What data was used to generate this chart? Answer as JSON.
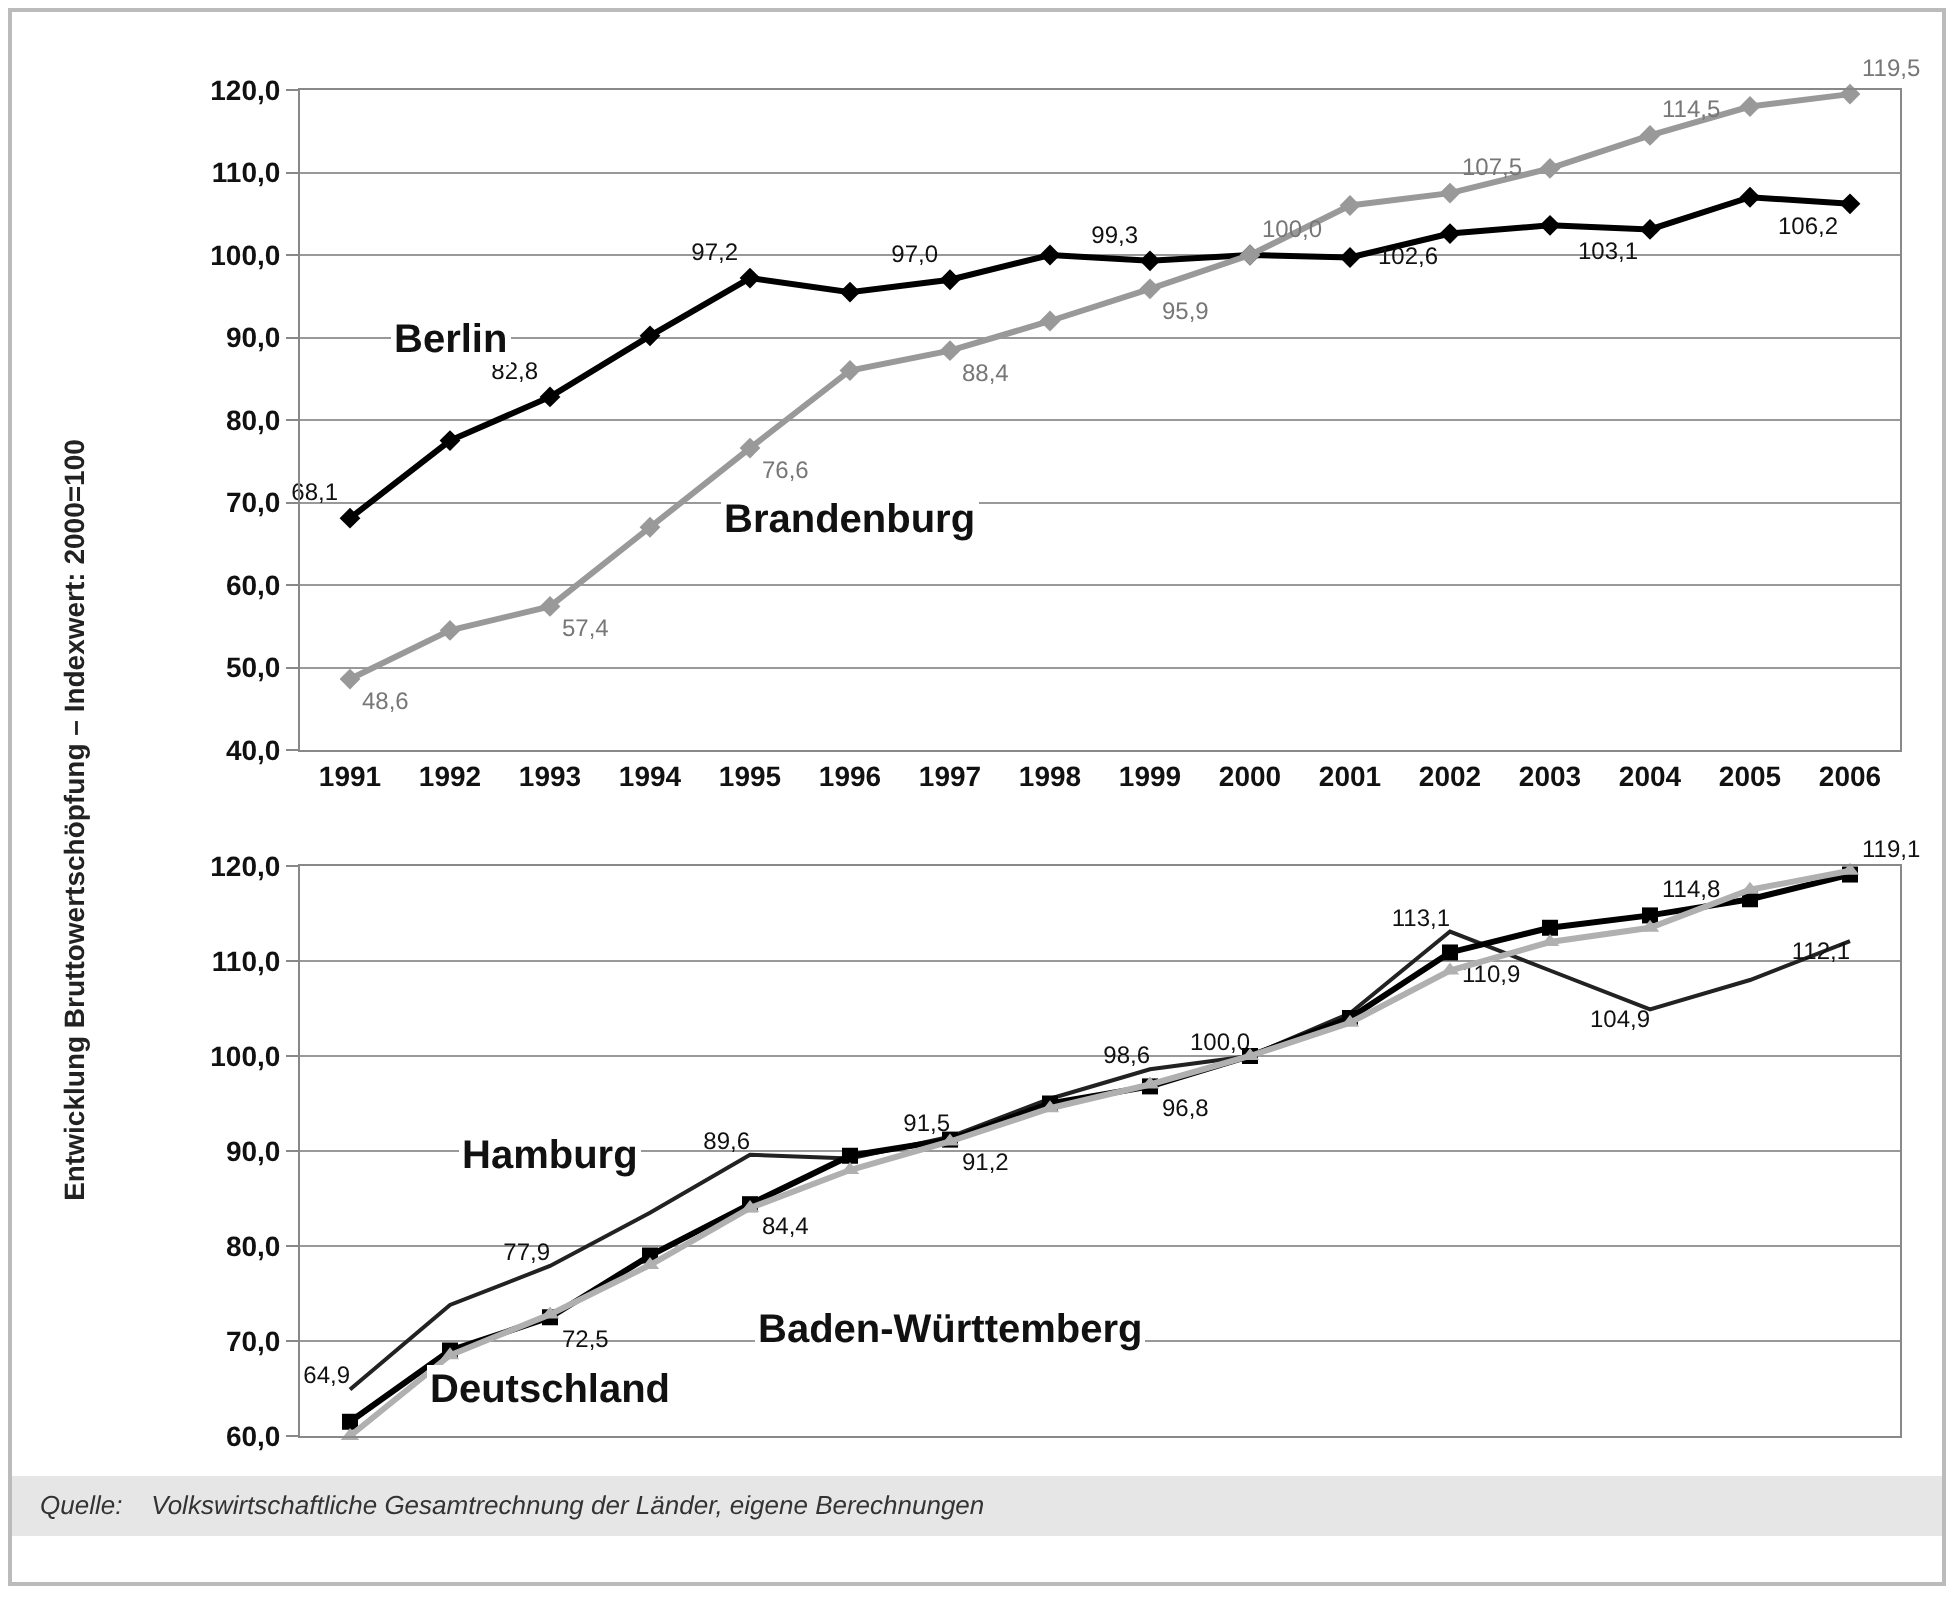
{
  "chart_data": [
    {
      "type": "line",
      "ylabel": "Entwicklung Bruttowertschöpfung – Indexwert: 2000=100",
      "categories": [
        "1991",
        "1992",
        "1993",
        "1994",
        "1995",
        "1996",
        "1997",
        "1998",
        "1999",
        "2000",
        "2001",
        "2002",
        "2003",
        "2004",
        "2005",
        "2006"
      ],
      "ylim": [
        40,
        120
      ],
      "yticks": [
        {
          "value": 40,
          "label": "40,0"
        },
        {
          "value": 50,
          "label": "50,0"
        },
        {
          "value": 60,
          "label": "60,0"
        },
        {
          "value": 70,
          "label": "70,0"
        },
        {
          "value": 80,
          "label": "80,0"
        },
        {
          "value": 90,
          "label": "90,0"
        },
        {
          "value": 100,
          "label": "100,0"
        },
        {
          "value": 110,
          "label": "110,0"
        },
        {
          "value": 120,
          "label": "120,0"
        }
      ],
      "grid": "y",
      "legend": false,
      "series": [
        {
          "name": "Berlin",
          "color": "#000000",
          "marker": "diamond",
          "values": [
            68.1,
            77.5,
            82.8,
            90.2,
            97.2,
            95.5,
            97.0,
            100.0,
            99.3,
            100.0,
            99.7,
            102.6,
            103.6,
            103.1,
            107.0,
            106.2
          ],
          "value_labels": [
            "68,1",
            null,
            "82,8",
            null,
            "97,2",
            null,
            "97,0",
            null,
            "99,3",
            null,
            null,
            "102,6",
            null,
            "103,1",
            null,
            "106,2"
          ]
        },
        {
          "name": "Brandenburg",
          "color": "#999999",
          "marker": "diamond",
          "values": [
            48.6,
            54.5,
            57.4,
            67.0,
            76.6,
            86.0,
            88.4,
            92.0,
            95.9,
            100.0,
            106.0,
            107.5,
            110.5,
            114.5,
            118.0,
            119.5
          ],
          "value_labels": [
            "48,6",
            null,
            "57,4",
            null,
            "76,6",
            null,
            "88,4",
            null,
            "95,9",
            "100,0",
            null,
            "107,5",
            null,
            "114,5",
            null,
            "119,5"
          ]
        }
      ]
    },
    {
      "type": "line",
      "categories": [
        "1991",
        "1992",
        "1993",
        "1994",
        "1995",
        "1996",
        "1997",
        "1998",
        "1999",
        "2000",
        "2001",
        "2002",
        "2003",
        "2004",
        "2005",
        "2006"
      ],
      "ylim": [
        60,
        120
      ],
      "yticks": [
        {
          "value": 60,
          "label": "60,0"
        },
        {
          "value": 70,
          "label": "70,0"
        },
        {
          "value": 80,
          "label": "80,0"
        },
        {
          "value": 90,
          "label": "90,0"
        },
        {
          "value": 100,
          "label": "100,0"
        },
        {
          "value": 110,
          "label": "110,0"
        },
        {
          "value": 120,
          "label": "120,0"
        }
      ],
      "grid": "y",
      "legend": false,
      "tick_labels": "y",
      "annotations": [
        "Quelle:    Volkswirtschaftliche Gesamtrechnung der Länder, eigene Berechnungen"
      ],
      "series": [
        {
          "name": "Hamburg",
          "color": "#222222",
          "marker": "none",
          "values": [
            64.9,
            73.8,
            77.9,
            83.5,
            89.6,
            89.2,
            91.5,
            95.5,
            98.6,
            100.0,
            104.5,
            113.1,
            109.0,
            104.9,
            108.0,
            112.1
          ],
          "value_labels": [
            "64,9",
            null,
            "77,9",
            null,
            "89,6",
            null,
            "91,5",
            null,
            "98,6",
            "100,0",
            null,
            "113,1",
            null,
            "104,9",
            null,
            "112,1"
          ]
        },
        {
          "name": "Baden-Württemberg",
          "color": "#000000",
          "marker": "square",
          "values": [
            61.5,
            69.0,
            72.5,
            79.0,
            84.4,
            89.5,
            91.2,
            95.0,
            96.8,
            100.0,
            104.0,
            110.9,
            113.5,
            114.8,
            116.5,
            119.1
          ],
          "value_labels": [
            null,
            null,
            "72,5",
            null,
            "84,4",
            null,
            "91,2",
            null,
            "96,8",
            null,
            null,
            "110,9",
            null,
            "114,8",
            null,
            "119,1"
          ]
        },
        {
          "name": "Deutschland",
          "color": "#b0b0b0",
          "marker": "triangle",
          "values": [
            60.0,
            68.5,
            72.8,
            78.0,
            84.0,
            88.0,
            91.0,
            94.5,
            97.0,
            100.0,
            103.5,
            109.0,
            112.0,
            113.5,
            117.5,
            119.5
          ]
        }
      ]
    }
  ]
}
